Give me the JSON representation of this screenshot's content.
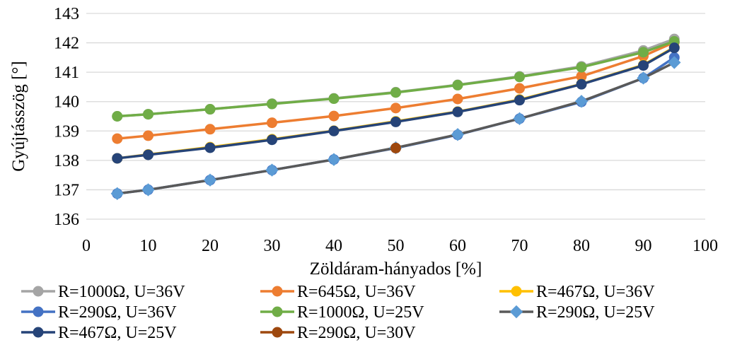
{
  "chart_data": {
    "type": "line",
    "xlabel": "Zöldáram-hányados [%]",
    "ylabel": "Gyújtásszög [°]",
    "xlim": [
      0,
      100
    ],
    "ylim": [
      136,
      143
    ],
    "xticks": [
      "0",
      "10",
      "20",
      "30",
      "40",
      "50",
      "60",
      "70",
      "80",
      "90",
      "100"
    ],
    "yticks": [
      "136",
      "137",
      "138",
      "139",
      "140",
      "141",
      "142",
      "143"
    ],
    "grid": "horizontal",
    "legend_position": "bottom",
    "x": [
      5,
      10,
      20,
      30,
      40,
      50,
      60,
      70,
      80,
      90,
      95
    ],
    "series": [
      {
        "name": "R=1000Ω, U=36V",
        "color": "#A5A5A5",
        "marker": "circle",
        "values": [
          139.5,
          139.57,
          139.74,
          139.93,
          140.11,
          140.32,
          140.57,
          140.86,
          141.2,
          141.74,
          142.13
        ]
      },
      {
        "name": "R=645Ω, U=36V",
        "color": "#ED7D31",
        "marker": "circle",
        "values": [
          138.74,
          138.84,
          139.06,
          139.28,
          139.51,
          139.78,
          140.09,
          140.45,
          140.86,
          141.55,
          142.02
        ]
      },
      {
        "name": "R=467Ω, U=36V",
        "color": "#FFC000",
        "marker": "circle",
        "values": [
          138.07,
          138.2,
          138.45,
          138.72,
          139.01,
          139.33,
          139.66,
          140.07,
          140.6,
          141.25,
          141.85
        ]
      },
      {
        "name": "R=290Ω, U=36V",
        "color": "#4472C4",
        "marker": "circle",
        "values": [
          136.87,
          137.0,
          137.33,
          137.67,
          138.03,
          138.42,
          138.87,
          139.42,
          139.99,
          140.8,
          141.5
        ]
      },
      {
        "name": "R=1000Ω, U=25V",
        "color": "#70AD47",
        "marker": "circle",
        "values": [
          139.5,
          139.57,
          139.74,
          139.92,
          140.1,
          140.31,
          140.56,
          140.84,
          141.17,
          141.68,
          142.05
        ]
      },
      {
        "name": "R=290Ω, U=25V",
        "color": "#5B9BD5",
        "line_color": "#595959",
        "marker": "diamond",
        "values": [
          136.87,
          137.0,
          137.33,
          137.67,
          138.03,
          138.43,
          138.88,
          139.42,
          140.01,
          140.8,
          141.33
        ]
      },
      {
        "name": "R=467Ω, U=25V",
        "color": "#264478",
        "marker": "circle",
        "values": [
          138.07,
          138.19,
          138.43,
          138.7,
          139.0,
          139.31,
          139.65,
          140.05,
          140.59,
          141.23,
          141.83
        ]
      },
      {
        "name": "R=290Ω, U=30V",
        "color": "#9E480E",
        "marker": "circle",
        "values": [
          null,
          null,
          null,
          null,
          null,
          138.42,
          null,
          null,
          null,
          null,
          null
        ]
      }
    ]
  }
}
